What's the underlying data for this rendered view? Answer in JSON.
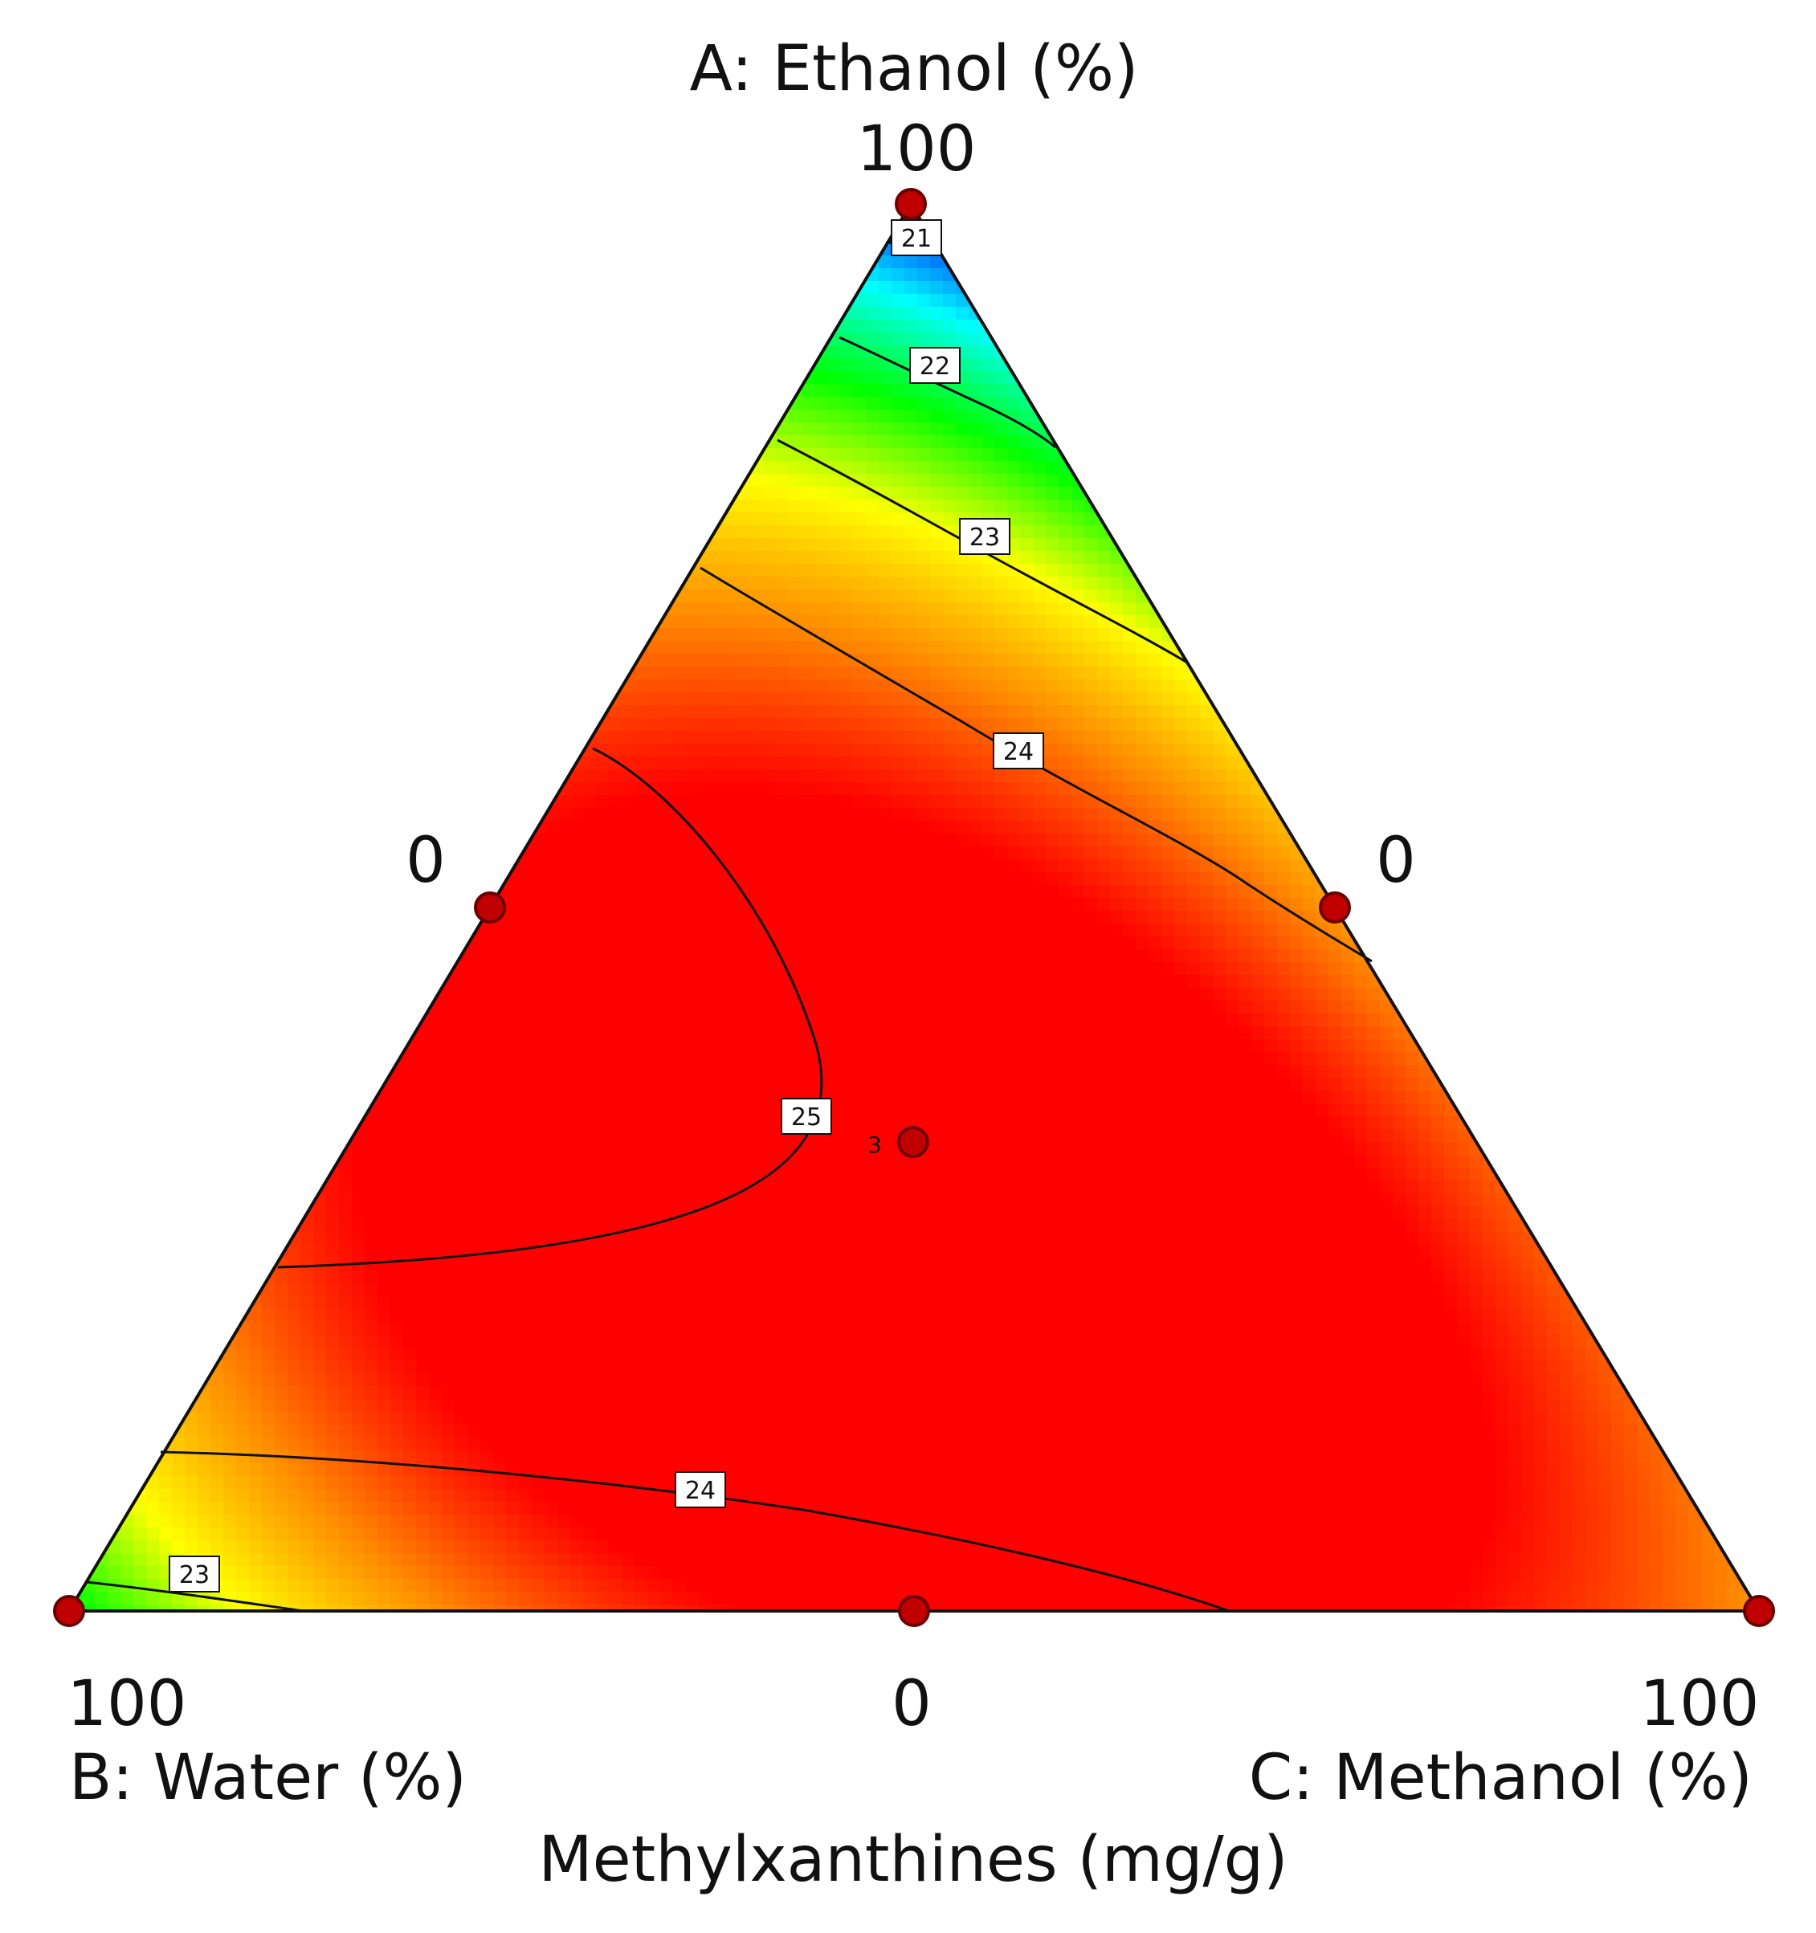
{
  "chart_data": {
    "type": "ternary-contour",
    "response_label": "Methylxanthines (mg/g)",
    "vertices": {
      "top": {
        "label": "A: Ethanol (%)",
        "max_tick": "100"
      },
      "bottom_left": {
        "label": "B: Water (%)",
        "max_tick": "100"
      },
      "bottom_right": {
        "label": "C: Methanol (%)",
        "max_tick": "100"
      }
    },
    "edge_ticks": {
      "left": "0",
      "right": "0",
      "bottom": "0"
    },
    "contour_levels": [
      "21",
      "22",
      "23",
      "24",
      "25",
      "24",
      "23"
    ],
    "design_points": [
      {
        "A": 100,
        "B": 0,
        "C": 0
      },
      {
        "A": 50,
        "B": 50,
        "C": 0
      },
      {
        "A": 50,
        "B": 0,
        "C": 50
      },
      {
        "A": 0,
        "B": 100,
        "C": 0
      },
      {
        "A": 0,
        "B": 50,
        "C": 50
      },
      {
        "A": 0,
        "B": 0,
        "C": 100
      },
      {
        "A": 33.3,
        "B": 33.3,
        "C": 33.3,
        "replicates": "3"
      }
    ],
    "color_scale": [
      "#0000ff",
      "#00ffff",
      "#00ff00",
      "#ffff00",
      "#ff8c00",
      "#ff0000"
    ],
    "value_range": [
      21,
      25.2
    ]
  }
}
